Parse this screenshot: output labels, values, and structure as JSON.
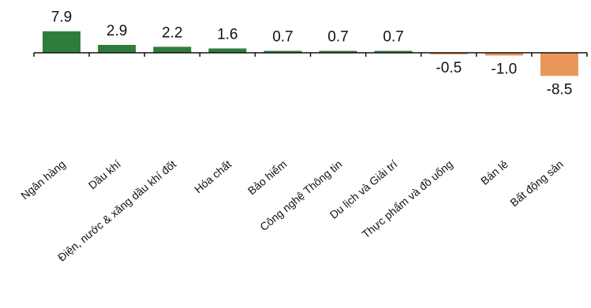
{
  "chart_data": {
    "type": "bar",
    "categories": [
      "Ngân hàng",
      "Dầu khí",
      "Điện, nước & xăng dầu khí đốt",
      "Hóa chất",
      "Bảo hiểm",
      "Công nghệ Thông tin",
      "Du lịch và Giải trí",
      "Thực phẩm và đồ uống",
      "Bán lẻ",
      "Bất động sản"
    ],
    "values": [
      7.9,
      2.9,
      2.2,
      1.6,
      0.7,
      0.7,
      0.7,
      -0.5,
      -1.0,
      -8.5
    ],
    "value_labels": [
      "7.9",
      "2.9",
      "2.2",
      "1.6",
      "0.7",
      "0.7",
      "0.7",
      "-0.5",
      "-1.0",
      "-8.5"
    ],
    "title": "",
    "xlabel": "",
    "ylabel": "",
    "ylim": [
      -8.5,
      7.9
    ],
    "grid": false,
    "legend": "none",
    "colors": {
      "positive": "#2e7d3a",
      "negative": "#e8965a",
      "axis": "#111111"
    }
  }
}
